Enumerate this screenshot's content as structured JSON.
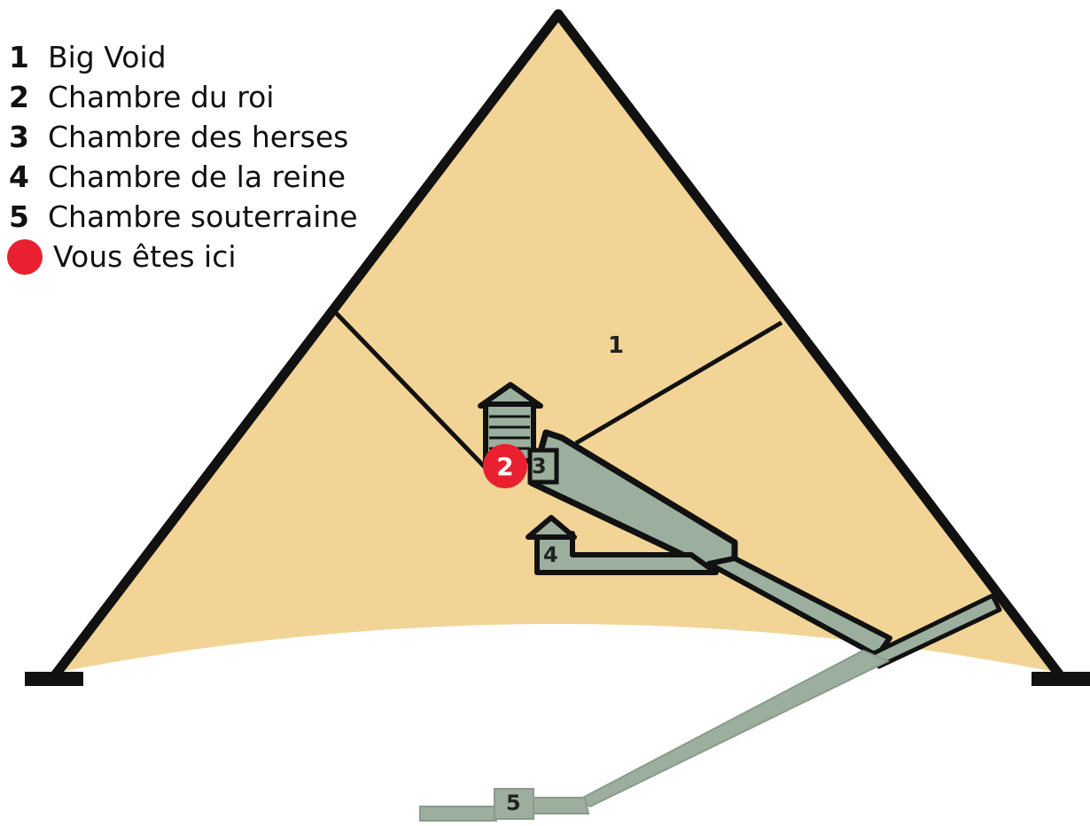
{
  "legend": {
    "items": [
      {
        "number": "1",
        "label": "Big Void"
      },
      {
        "number": "2",
        "label": "Chambre du roi"
      },
      {
        "number": "3",
        "label": "Chambre des herses"
      },
      {
        "number": "4",
        "label": "Chambre de la reine"
      },
      {
        "number": "5",
        "label": "Chambre souterraine"
      }
    ],
    "you_are_here": {
      "label": "Vous êtes ici"
    }
  },
  "diagram": {
    "labels": {
      "big_void": "1",
      "kings_chamber": "2",
      "portcullis_chamber": "3",
      "queens_chamber": "4",
      "subterranean_chamber": "5"
    },
    "you_are_here_number": "2"
  },
  "colors": {
    "pyramid_fill": "#f2d496",
    "passage_fill": "#9caf9f",
    "outline": "#111111",
    "marker": "#e8202f",
    "background": "#ffffff"
  }
}
